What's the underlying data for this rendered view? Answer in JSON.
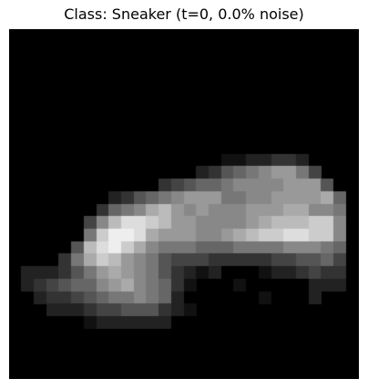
{
  "figure": {
    "title": "Class: Sneaker (t=0, 0.0% noise)"
  },
  "image": {
    "description_colormap": "gray",
    "grid_size": 28,
    "pixels": [
      "............................",
      "............................",
      "............................",
      "............................",
      "............................",
      "............................",
      "............................",
      "............................",
      "............................",
      "............................",
      ".................1122332....",
      "...............2356789974...",
      "............34566788889995..",
      "........23567899977889999A6.",
      ".......3678AB989888999AA887.",
      "......48BDDCB9988889ABBBCC8.",
      "......7CEEDA999889ABCCDDCC8.",
      ".....5BDECA8777666777788876.",
      "....37ACB987544433333445564.",
      ".2223579A98753212...1223433.",
      ".23456689A87631...1.....222.",
      "..233456778762......1...2...",
      "...222344555321.............",
      "......1222222...............",
      "............................",
      "............................",
      "............................",
      "............................"
    ]
  }
}
